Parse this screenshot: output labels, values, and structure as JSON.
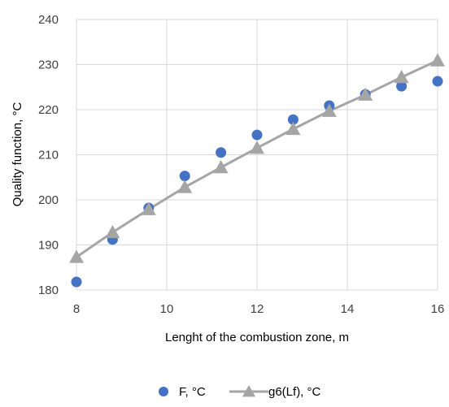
{
  "chart_data": {
    "type": "scatter",
    "xlabel": "Lenght of the combustion zone, m",
    "ylabel": "Quality function, °C",
    "xlim": [
      8,
      16
    ],
    "ylim": [
      180,
      240
    ],
    "xticks": [
      8,
      10,
      12,
      14,
      16
    ],
    "yticks": [
      180,
      190,
      200,
      210,
      220,
      230,
      240
    ],
    "grid": true,
    "legend_position": "bottom",
    "series": [
      {
        "name": "F, °C",
        "style": "markers",
        "marker": "circle",
        "color": "#4472C4",
        "x": [
          8,
          8.8,
          9.6,
          10.4,
          11.2,
          12,
          12.8,
          13.6,
          14.4,
          15.2,
          16
        ],
        "y": [
          181.8,
          191.2,
          198.2,
          205.3,
          210.5,
          214.4,
          217.8,
          220.9,
          223.4,
          225.2,
          226.3
        ]
      },
      {
        "name": "g6(Lf), °C",
        "style": "line+markers",
        "marker": "triangle",
        "color": "#A5A5A5",
        "x": [
          8,
          8.8,
          9.6,
          10.4,
          11.2,
          12,
          12.8,
          13.6,
          14.4,
          15.2,
          16
        ],
        "y": [
          187.3,
          192.8,
          197.9,
          202.8,
          207.2,
          211.5,
          215.7,
          219.7,
          223.3,
          227.2,
          230.9
        ]
      }
    ]
  }
}
